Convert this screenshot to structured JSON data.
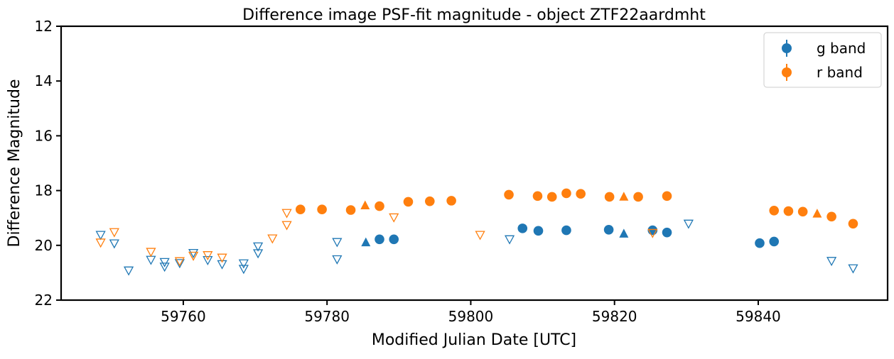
{
  "chart_data": {
    "type": "scatter",
    "title": "Difference image PSF-fit magnitude - object ZTF22aardmht",
    "xlabel": "Modified Julian Date [UTC]",
    "ylabel": "Difference Magnitude",
    "xlim": [
      59743,
      59858
    ],
    "ylim": [
      22,
      12
    ],
    "y_inverted": true,
    "x_ticks": [
      59760,
      59780,
      59800,
      59820,
      59840
    ],
    "y_ticks": [
      12,
      14,
      16,
      18,
      20,
      22
    ],
    "grid": false,
    "legend_position": "top-right",
    "series": [
      {
        "name": "g band",
        "color": "#1f77b4",
        "detections": [
          {
            "x": 59807.2,
            "y": 19.38
          },
          {
            "x": 59809.4,
            "y": 19.47
          },
          {
            "x": 59813.3,
            "y": 19.45
          },
          {
            "x": 59819.2,
            "y": 19.43
          },
          {
            "x": 59825.3,
            "y": 19.45
          },
          {
            "x": 59827.3,
            "y": 19.53
          },
          {
            "x": 59787.3,
            "y": 19.78
          },
          {
            "x": 59789.3,
            "y": 19.78
          },
          {
            "x": 59840.2,
            "y": 19.92
          },
          {
            "x": 59842.2,
            "y": 19.86
          }
        ],
        "lower_limits": [
          {
            "x": 59785.4,
            "y": 19.88
          },
          {
            "x": 59821.3,
            "y": 19.56
          }
        ],
        "upper_limits": [
          {
            "x": 59748.5,
            "y": 19.62
          },
          {
            "x": 59750.4,
            "y": 19.93
          },
          {
            "x": 59752.4,
            "y": 20.92
          },
          {
            "x": 59755.5,
            "y": 20.53
          },
          {
            "x": 59757.4,
            "y": 20.61
          },
          {
            "x": 59757.4,
            "y": 20.78
          },
          {
            "x": 59759.5,
            "y": 20.65
          },
          {
            "x": 59761.4,
            "y": 20.28
          },
          {
            "x": 59763.4,
            "y": 20.54
          },
          {
            "x": 59765.4,
            "y": 20.69
          },
          {
            "x": 59768.4,
            "y": 20.66
          },
          {
            "x": 59768.4,
            "y": 20.86
          },
          {
            "x": 59770.4,
            "y": 20.04
          },
          {
            "x": 59770.4,
            "y": 20.29
          },
          {
            "x": 59781.4,
            "y": 19.88
          },
          {
            "x": 59781.4,
            "y": 20.51
          },
          {
            "x": 59805.4,
            "y": 19.78
          },
          {
            "x": 59830.3,
            "y": 19.21
          },
          {
            "x": 59850.2,
            "y": 20.57
          },
          {
            "x": 59853.2,
            "y": 20.84
          }
        ]
      },
      {
        "name": "r band",
        "color": "#ff7f0e",
        "detections": [
          {
            "x": 59776.3,
            "y": 18.69
          },
          {
            "x": 59779.3,
            "y": 18.69
          },
          {
            "x": 59783.3,
            "y": 18.71
          },
          {
            "x": 59787.3,
            "y": 18.57
          },
          {
            "x": 59791.3,
            "y": 18.41
          },
          {
            "x": 59794.3,
            "y": 18.39
          },
          {
            "x": 59797.3,
            "y": 18.37
          },
          {
            "x": 59805.3,
            "y": 18.15
          },
          {
            "x": 59809.3,
            "y": 18.2
          },
          {
            "x": 59811.3,
            "y": 18.23
          },
          {
            "x": 59813.3,
            "y": 18.1
          },
          {
            "x": 59815.3,
            "y": 18.12
          },
          {
            "x": 59819.3,
            "y": 18.23
          },
          {
            "x": 59823.3,
            "y": 18.23
          },
          {
            "x": 59827.3,
            "y": 18.2
          },
          {
            "x": 59842.2,
            "y": 18.73
          },
          {
            "x": 59844.2,
            "y": 18.75
          },
          {
            "x": 59846.2,
            "y": 18.77
          },
          {
            "x": 59850.2,
            "y": 18.95
          },
          {
            "x": 59853.2,
            "y": 19.21
          }
        ],
        "lower_limits": [
          {
            "x": 59785.3,
            "y": 18.53
          },
          {
            "x": 59821.3,
            "y": 18.21
          },
          {
            "x": 59848.2,
            "y": 18.83
          }
        ],
        "upper_limits": [
          {
            "x": 59748.5,
            "y": 19.9
          },
          {
            "x": 59750.4,
            "y": 19.52
          },
          {
            "x": 59755.5,
            "y": 20.24
          },
          {
            "x": 59759.5,
            "y": 20.58
          },
          {
            "x": 59761.4,
            "y": 20.38
          },
          {
            "x": 59763.4,
            "y": 20.36
          },
          {
            "x": 59765.4,
            "y": 20.45
          },
          {
            "x": 59772.4,
            "y": 19.75
          },
          {
            "x": 59774.4,
            "y": 18.82
          },
          {
            "x": 59774.4,
            "y": 19.26
          },
          {
            "x": 59789.3,
            "y": 18.98
          },
          {
            "x": 59801.3,
            "y": 19.62
          },
          {
            "x": 59825.3,
            "y": 19.55
          }
        ]
      }
    ]
  }
}
